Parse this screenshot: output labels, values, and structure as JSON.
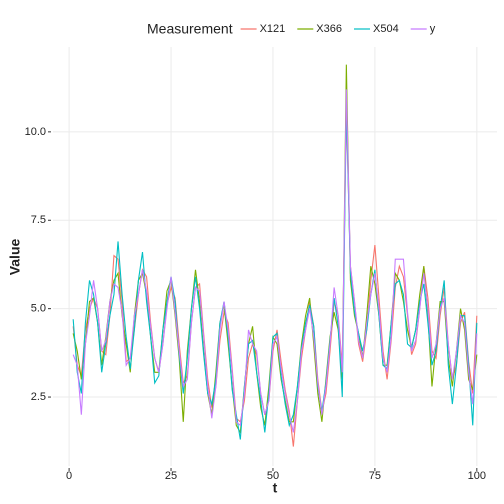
{
  "chart_data": {
    "type": "line",
    "xlabel": "t",
    "ylabel": "Value",
    "legend_title": "Measurement",
    "legend": "top",
    "grid": true,
    "xlim": [
      -3.95,
      104.95
    ],
    "xticks": [
      0,
      25,
      50,
      75,
      100
    ],
    "ylim": [
      0.55,
      12.4
    ],
    "yticks": [
      2.5,
      {
        "value": 5,
        "label": "5.0"
      },
      7.5,
      {
        "value": 10,
        "label": "10.0"
      }
    ],
    "x": [
      1,
      2,
      3,
      4,
      5,
      6,
      7,
      8,
      9,
      10,
      11,
      12,
      13,
      14,
      15,
      16,
      17,
      18,
      19,
      20,
      21,
      22,
      23,
      24,
      25,
      26,
      27,
      28,
      29,
      30,
      31,
      32,
      33,
      34,
      35,
      36,
      37,
      38,
      39,
      40,
      41,
      42,
      43,
      44,
      45,
      46,
      47,
      48,
      49,
      50,
      51,
      52,
      53,
      54,
      55,
      56,
      57,
      58,
      59,
      60,
      61,
      62,
      63,
      64,
      65,
      66,
      67,
      68,
      69,
      70,
      71,
      72,
      73,
      74,
      75,
      76,
      77,
      78,
      79,
      80,
      81,
      82,
      83,
      84,
      85,
      86,
      87,
      88,
      89,
      90,
      91,
      92,
      93,
      94,
      95,
      96,
      97,
      98,
      99,
      100
    ],
    "series": [
      {
        "name": "X121",
        "color": "#F8766D",
        "values": [
          4.5,
          3.4,
          3.1,
          4.4,
          5.0,
          5.3,
          5.0,
          3.8,
          3.7,
          4.8,
          6.5,
          6.4,
          5.2,
          3.5,
          3.6,
          4.4,
          5.4,
          6.1,
          5.9,
          4.6,
          3.6,
          3.2,
          4.0,
          5.1,
          5.6,
          5.3,
          4.0,
          2.9,
          3.1,
          4.6,
          5.6,
          5.7,
          4.3,
          3.0,
          2.2,
          2.8,
          4.1,
          4.9,
          4.6,
          3.3,
          1.9,
          1.8,
          2.4,
          3.6,
          4.0,
          3.7,
          2.6,
          2.0,
          2.4,
          3.8,
          4.4,
          3.5,
          2.7,
          2.1,
          1.1,
          2.4,
          3.6,
          4.4,
          5.2,
          4.5,
          3.0,
          2.1,
          2.6,
          3.8,
          5.2,
          4.8,
          3.4,
          10.6,
          6.2,
          5.2,
          4.0,
          3.5,
          4.4,
          5.8,
          6.8,
          5.3,
          3.8,
          3.0,
          4.1,
          5.6,
          6.2,
          5.9,
          4.8,
          3.7,
          4.0,
          5.0,
          6.2,
          5.3,
          3.8,
          3.6,
          4.8,
          5.6,
          4.0,
          3.0,
          3.4,
          4.6,
          4.9,
          3.5,
          2.6,
          4.8
        ]
      },
      {
        "name": "X366",
        "color": "#7CAE00",
        "values": [
          4.3,
          3.8,
          3.0,
          4.0,
          5.2,
          5.3,
          4.6,
          3.4,
          4.2,
          5.2,
          5.8,
          6.0,
          4.8,
          4.0,
          3.2,
          4.8,
          5.8,
          6.0,
          5.4,
          4.2,
          3.2,
          3.2,
          4.4,
          5.5,
          5.8,
          4.8,
          3.6,
          1.8,
          3.8,
          5.0,
          6.1,
          5.2,
          3.8,
          2.6,
          2.0,
          3.2,
          4.6,
          5.1,
          4.0,
          2.8,
          1.7,
          1.5,
          2.8,
          4.0,
          4.5,
          3.2,
          2.2,
          1.7,
          2.8,
          4.2,
          4.0,
          3.0,
          2.4,
          1.8,
          1.8,
          2.8,
          4.0,
          4.8,
          5.3,
          4.0,
          2.6,
          1.8,
          3.0,
          4.2,
          4.9,
          4.4,
          3.0,
          11.9,
          5.8,
          4.8,
          4.3,
          3.6,
          4.8,
          6.2,
          5.7,
          4.8,
          3.4,
          3.4,
          4.6,
          6.0,
          5.8,
          5.2,
          4.4,
          3.9,
          4.4,
          5.4,
          6.2,
          4.8,
          2.8,
          4.0,
          5.2,
          5.2,
          3.6,
          2.8,
          3.8,
          5.0,
          4.4,
          3.0,
          2.7,
          3.7
        ]
      },
      {
        "name": "X504",
        "color": "#00BFC4",
        "values": [
          4.7,
          3.2,
          2.6,
          4.6,
          5.8,
          5.4,
          4.6,
          3.2,
          4.0,
          4.8,
          5.4,
          6.9,
          5.4,
          4.2,
          3.3,
          4.4,
          5.8,
          6.6,
          5.2,
          4.2,
          2.9,
          3.1,
          4.4,
          5.2,
          5.9,
          5.2,
          3.7,
          2.6,
          3.6,
          5.0,
          5.9,
          5.0,
          3.7,
          2.6,
          2.3,
          3.0,
          4.6,
          5.2,
          4.2,
          2.7,
          2.0,
          1.3,
          2.8,
          4.0,
          4.1,
          3.2,
          2.4,
          1.5,
          2.6,
          4.2,
          4.3,
          3.1,
          2.3,
          1.7,
          2.0,
          2.8,
          3.9,
          4.6,
          5.1,
          4.5,
          2.8,
          2.1,
          2.9,
          4.1,
          5.3,
          4.5,
          2.5,
          10.8,
          6.0,
          4.9,
          4.3,
          3.8,
          4.4,
          5.4,
          6.1,
          4.8,
          3.4,
          3.3,
          4.6,
          5.7,
          5.8,
          5.4,
          4.0,
          3.9,
          4.4,
          5.2,
          5.7,
          4.6,
          3.4,
          3.8,
          5.0,
          5.8,
          3.4,
          2.3,
          3.4,
          4.8,
          4.8,
          3.4,
          1.7,
          4.6
        ]
      },
      {
        "name": "y",
        "color": "#C77CFF",
        "values": [
          3.7,
          3.4,
          2.0,
          4.0,
          4.8,
          5.8,
          5.0,
          3.8,
          4.1,
          5.2,
          5.7,
          5.6,
          4.9,
          3.4,
          3.6,
          4.8,
          5.4,
          6.1,
          5.5,
          4.5,
          3.6,
          3.2,
          4.0,
          5.0,
          5.9,
          4.9,
          3.8,
          2.8,
          3.0,
          4.6,
          5.6,
          5.5,
          4.2,
          2.8,
          1.9,
          2.8,
          4.4,
          5.2,
          4.4,
          3.2,
          1.8,
          1.7,
          2.6,
          4.4,
          4.0,
          3.8,
          2.6,
          2.0,
          2.4,
          4.0,
          4.2,
          3.3,
          2.6,
          2.0,
          1.5,
          2.4,
          3.8,
          4.4,
          5.0,
          4.2,
          2.9,
          2.0,
          2.8,
          4.0,
          5.6,
          4.8,
          3.2,
          11.2,
          6.2,
          5.2,
          4.1,
          3.6,
          4.6,
          5.4,
          6.0,
          5.0,
          3.6,
          3.2,
          4.2,
          6.4,
          6.4,
          6.4,
          4.9,
          3.8,
          4.1,
          5.0,
          6.0,
          5.0,
          3.6,
          4.0,
          5.0,
          5.3,
          4.0,
          3.0,
          3.8,
          4.8,
          4.6,
          3.2,
          2.3,
          4.3
        ]
      }
    ]
  }
}
